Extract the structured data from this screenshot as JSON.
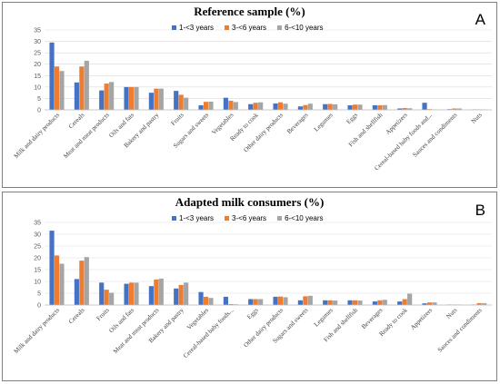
{
  "chart_data": [
    {
      "type": "bar",
      "panel_label": "A",
      "title": "Reference sample (%)",
      "xlabel": "",
      "ylabel": "",
      "ylim": [
        0,
        35
      ],
      "yticks": [
        0,
        5,
        10,
        15,
        20,
        25,
        30,
        35
      ],
      "grid": true,
      "legend_position": "top-center",
      "categories": [
        "Milk and dairy products",
        "Cereals",
        "Meat and meat products",
        "Oils and fats",
        "Bakery and pastry",
        "Fruits",
        "Sugars and sweets",
        "Vegetables",
        "Ready to cook",
        "Other dairy products",
        "Beverages",
        "Legumes",
        "Eggs",
        "Fish and shellfish",
        "Appetizers",
        "Cereal-based baby foods and...",
        "Sauces and condiments",
        "Nuts"
      ],
      "series": [
        {
          "name": "1-<3 years",
          "color": "#4472c4",
          "values": [
            29.5,
            12,
            8.5,
            10,
            7.5,
            8.3,
            2,
            5.3,
            2.5,
            2.8,
            1.5,
            2.5,
            2,
            2,
            0.6,
            3.1,
            0.3,
            0.2
          ]
        },
        {
          "name": "3-<6 years",
          "color": "#ed7d31",
          "values": [
            19,
            19,
            11.5,
            10,
            9.3,
            6.6,
            3.5,
            4,
            3.1,
            3.3,
            2.1,
            2.6,
            2.3,
            2,
            0.8,
            0.3,
            0.6,
            0.2
          ]
        },
        {
          "name": "6-<10 years",
          "color": "#a5a5a5",
          "values": [
            17,
            21.5,
            12.2,
            10,
            9.3,
            5.3,
            3.6,
            3.4,
            3.3,
            2.7,
            2.7,
            2.4,
            2.3,
            2.1,
            0.7,
            0.2,
            0.6,
            0.2
          ]
        }
      ]
    },
    {
      "type": "bar",
      "panel_label": "B",
      "title": "Adapted milk consumers (%)",
      "xlabel": "",
      "ylabel": "",
      "ylim": [
        0,
        35
      ],
      "yticks": [
        0,
        5,
        10,
        15,
        20,
        25,
        30,
        35
      ],
      "grid": true,
      "legend_position": "top-center",
      "categories": [
        "Milk and dairy products",
        "Cereals",
        "Fruits",
        "Oils and fats",
        "Meat and meat products",
        "Bakery and pastry",
        "Vegetables",
        "Cereal-based baby foods...",
        "Eggs",
        "Other dairy products",
        "Sugars and sweets",
        "Legumes",
        "Fish and shellfish",
        "Beverages",
        "Ready to cook",
        "Appetizers",
        "Nuts",
        "Sauces and condiments"
      ],
      "series": [
        {
          "name": "1-<3 years",
          "color": "#4472c4",
          "values": [
            31.5,
            11,
            9.5,
            9,
            8,
            7,
            5.5,
            3.5,
            2.5,
            3.5,
            2,
            2,
            2,
            1.5,
            1.5,
            0.7,
            0.2,
            0.2
          ]
        },
        {
          "name": "3-<6 years",
          "color": "#ed7d31",
          "values": [
            21,
            18.8,
            6.5,
            9.5,
            10.8,
            8.5,
            3.5,
            0.4,
            2.5,
            3.6,
            3.7,
            2,
            2,
            2,
            2.5,
            1.1,
            0.2,
            0.8
          ]
        },
        {
          "name": "6-<10 years",
          "color": "#a5a5a5",
          "values": [
            17.5,
            20.3,
            5.2,
            9.5,
            11.2,
            9.5,
            3,
            0.3,
            2.5,
            3.3,
            3.9,
            1.9,
            1.9,
            2.2,
            4.8,
            1.1,
            0.2,
            0.8
          ]
        }
      ]
    }
  ]
}
